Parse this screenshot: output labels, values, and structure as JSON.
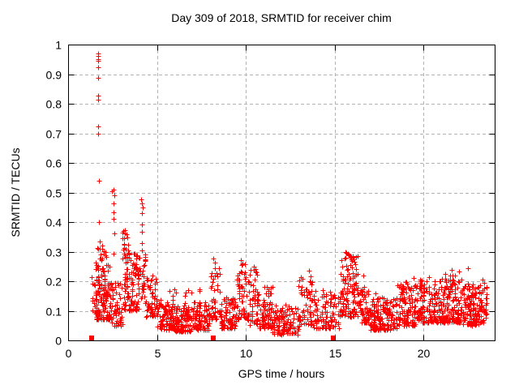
{
  "window": {
    "background": "#ffffff"
  },
  "chart_data": {
    "type": "scatter",
    "title": "Day 309 of 2018, SRMTID for receiver chim",
    "xlabel": "GPS time / hours",
    "ylabel": "SRMTID / TECUs",
    "xlim": [
      0,
      24
    ],
    "ylim": [
      0,
      1
    ],
    "xticks": [
      0,
      5,
      10,
      15,
      20
    ],
    "yticks": [
      0,
      0.1,
      0.2,
      0.3,
      0.4,
      0.5,
      0.6,
      0.7,
      0.8,
      0.9,
      1
    ],
    "grid": {
      "show": true,
      "color": "#b3b3b3",
      "dash": "4,3"
    },
    "frame_color": "#000000",
    "text_color": "#000000",
    "marker": {
      "shape": "plus",
      "color": "#ff0000",
      "size": 7
    },
    "legend": "none",
    "seed": 309,
    "clusters": [
      [
        1.3,
        1.6,
        16,
        0.09,
        0.225,
        1.2
      ],
      [
        1.55,
        2.35,
        150,
        0.07,
        0.28,
        1.5
      ],
      [
        1.6,
        2.3,
        12,
        0.28,
        0.335,
        1.0
      ],
      [
        2.35,
        3.05,
        65,
        0.05,
        0.2,
        1.6
      ],
      [
        3.05,
        3.45,
        14,
        0.29,
        0.375,
        1.0
      ],
      [
        3.05,
        4.0,
        115,
        0.1,
        0.3,
        1.5
      ],
      [
        4.0,
        4.35,
        26,
        0.13,
        0.295,
        1.2
      ],
      [
        4.35,
        5.0,
        55,
        0.08,
        0.22,
        1.5
      ],
      [
        5.0,
        6.0,
        105,
        0.035,
        0.13,
        1.5
      ],
      [
        6.0,
        7.0,
        105,
        0.03,
        0.12,
        1.5
      ],
      [
        7.0,
        7.95,
        95,
        0.035,
        0.13,
        1.5
      ],
      [
        5.2,
        7.8,
        16,
        0.125,
        0.175,
        1.0
      ],
      [
        7.95,
        8.6,
        45,
        0.07,
        0.25,
        1.4
      ],
      [
        8.6,
        9.5,
        85,
        0.04,
        0.15,
        1.5
      ],
      [
        9.5,
        10.1,
        55,
        0.07,
        0.26,
        1.4
      ],
      [
        10.1,
        10.75,
        55,
        0.05,
        0.245,
        1.5
      ],
      [
        10.75,
        11.5,
        70,
        0.04,
        0.19,
        1.6
      ],
      [
        11.5,
        13.0,
        115,
        0.02,
        0.12,
        1.5
      ],
      [
        12.95,
        13.8,
        60,
        0.05,
        0.225,
        1.5
      ],
      [
        13.8,
        15.25,
        100,
        0.04,
        0.17,
        1.6
      ],
      [
        15.25,
        16.35,
        125,
        0.08,
        0.295,
        1.5
      ],
      [
        16.35,
        16.95,
        55,
        0.06,
        0.185,
        1.5
      ],
      [
        16.95,
        18.5,
        165,
        0.035,
        0.145,
        1.5
      ],
      [
        18.5,
        19.6,
        110,
        0.05,
        0.2,
        1.5
      ],
      [
        19.6,
        21.0,
        150,
        0.06,
        0.205,
        1.6
      ],
      [
        21.0,
        22.2,
        145,
        0.06,
        0.225,
        1.6
      ],
      [
        22.2,
        23.15,
        120,
        0.05,
        0.2,
        1.5
      ],
      [
        23.15,
        23.55,
        45,
        0.06,
        0.2,
        1.3
      ]
    ],
    "outlier_points": [
      [
        1.69,
        0.97
      ],
      [
        1.71,
        0.962
      ],
      [
        1.67,
        0.952
      ],
      [
        1.7,
        0.944
      ],
      [
        1.69,
        0.922
      ],
      [
        1.7,
        0.888
      ],
      [
        1.68,
        0.828
      ],
      [
        1.69,
        0.814
      ],
      [
        1.7,
        0.724
      ],
      [
        1.69,
        0.7
      ],
      [
        1.72,
        0.54
      ],
      [
        1.74,
        0.4
      ],
      [
        1.76,
        0.31
      ],
      [
        2.45,
        0.505
      ],
      [
        2.56,
        0.51
      ],
      [
        2.58,
        0.49
      ],
      [
        2.57,
        0.462
      ],
      [
        2.55,
        0.432
      ],
      [
        2.56,
        0.41
      ],
      [
        2.58,
        0.362
      ],
      [
        2.54,
        0.292
      ],
      [
        3.2,
        0.372
      ],
      [
        3.28,
        0.36
      ],
      [
        3.15,
        0.345
      ],
      [
        4.12,
        0.478
      ],
      [
        4.16,
        0.462
      ],
      [
        4.18,
        0.448
      ],
      [
        4.14,
        0.43
      ],
      [
        4.15,
        0.392
      ],
      [
        4.17,
        0.368
      ],
      [
        4.13,
        0.33
      ],
      [
        4.16,
        0.305
      ],
      [
        8.18,
        0.278
      ],
      [
        8.25,
        0.262
      ],
      [
        9.7,
        0.27
      ],
      [
        9.78,
        0.255
      ],
      [
        10.45,
        0.25
      ],
      [
        13.55,
        0.235
      ],
      [
        15.6,
        0.3
      ],
      [
        15.75,
        0.292
      ],
      [
        15.9,
        0.285
      ],
      [
        16.6,
        0.22
      ],
      [
        17.3,
        0.16
      ],
      [
        19.45,
        0.21
      ],
      [
        20.3,
        0.215
      ],
      [
        21.6,
        0.238
      ],
      [
        22.0,
        0.232
      ],
      [
        22.5,
        0.243
      ],
      [
        23.3,
        0.205
      ]
    ],
    "zero_points": [
      1.34,
      8.19,
      14.9
    ]
  }
}
